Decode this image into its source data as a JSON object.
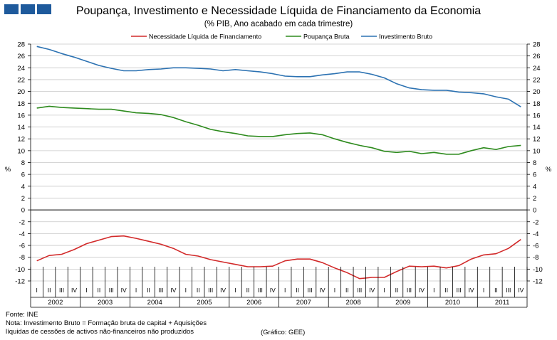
{
  "header": {
    "title": "Poupança, Investimento e Necessidade Líquida de Financiamento da Economia",
    "subtitle": "(% PIB, Ano acabado em cada trimestre)"
  },
  "footer": {
    "source": "Fonte: INE",
    "note_line1": "Nota: Investimento Bruto = Formação bruta de capital + Aquisições",
    "note_line2": "líquidas de cessões de activos não-financeiros não produzidos",
    "credit": "(Gráfico: GEE)"
  },
  "colors": {
    "logo": "#1e5a9c",
    "grid": "#c8c8c8"
  },
  "chart_data": {
    "type": "line",
    "ylabel_left": "%",
    "ylabel_right": "%",
    "ylim": [
      -12,
      28
    ],
    "yticks": [
      -12,
      -10,
      -8,
      -6,
      -4,
      -2,
      0,
      2,
      4,
      6,
      8,
      10,
      12,
      14,
      16,
      18,
      20,
      22,
      24,
      26,
      28
    ],
    "quarters": [
      "I",
      "II",
      "III",
      "IV"
    ],
    "years": [
      "2002",
      "2003",
      "2004",
      "2005",
      "2006",
      "2007",
      "2008",
      "2009",
      "2010",
      "2011"
    ],
    "legend": [
      "Necessidade Líquida de Financiamento",
      "Poupança Bruta",
      "Investimento Bruto"
    ],
    "series": [
      {
        "name": "Necessidade Líquida de Financiamento",
        "color": "#d22a2a",
        "values": [
          -8.6,
          -7.7,
          -7.5,
          -6.7,
          -5.7,
          -5.1,
          -4.5,
          -4.4,
          -4.8,
          -5.3,
          -5.8,
          -6.5,
          -7.5,
          -7.8,
          -8.4,
          -8.8,
          -9.2,
          -9.6,
          -9.6,
          -9.5,
          -8.6,
          -8.3,
          -8.3,
          -8.9,
          -9.8,
          -10.6,
          -11.6,
          -11.4,
          -11.4,
          -10.4,
          -9.5,
          -9.6,
          -9.5,
          -9.8,
          -9.4,
          -8.3,
          -7.6,
          -7.4,
          -6.5,
          -5.0
        ]
      },
      {
        "name": "Poupança Bruta",
        "color": "#2e8b1e",
        "values": [
          17.2,
          17.5,
          17.3,
          17.2,
          17.1,
          17.0,
          17.0,
          16.7,
          16.4,
          16.3,
          16.1,
          15.6,
          14.9,
          14.3,
          13.6,
          13.2,
          12.9,
          12.5,
          12.4,
          12.4,
          12.7,
          12.9,
          13.0,
          12.7,
          12.0,
          11.4,
          10.9,
          10.5,
          9.9,
          9.7,
          9.9,
          9.5,
          9.7,
          9.4,
          9.4,
          10.0,
          10.5,
          10.2,
          10.7,
          10.9
        ]
      },
      {
        "name": "Investimento Bruto",
        "color": "#2c72b2",
        "values": [
          27.6,
          27.1,
          26.4,
          25.8,
          25.1,
          24.4,
          23.9,
          23.5,
          23.5,
          23.7,
          23.8,
          24.0,
          24.0,
          23.9,
          23.8,
          23.5,
          23.7,
          23.5,
          23.3,
          23.0,
          22.6,
          22.5,
          22.5,
          22.8,
          23.0,
          23.3,
          23.3,
          22.9,
          22.3,
          21.3,
          20.6,
          20.3,
          20.2,
          20.2,
          19.9,
          19.8,
          19.6,
          19.1,
          18.7,
          17.4
        ]
      }
    ]
  }
}
